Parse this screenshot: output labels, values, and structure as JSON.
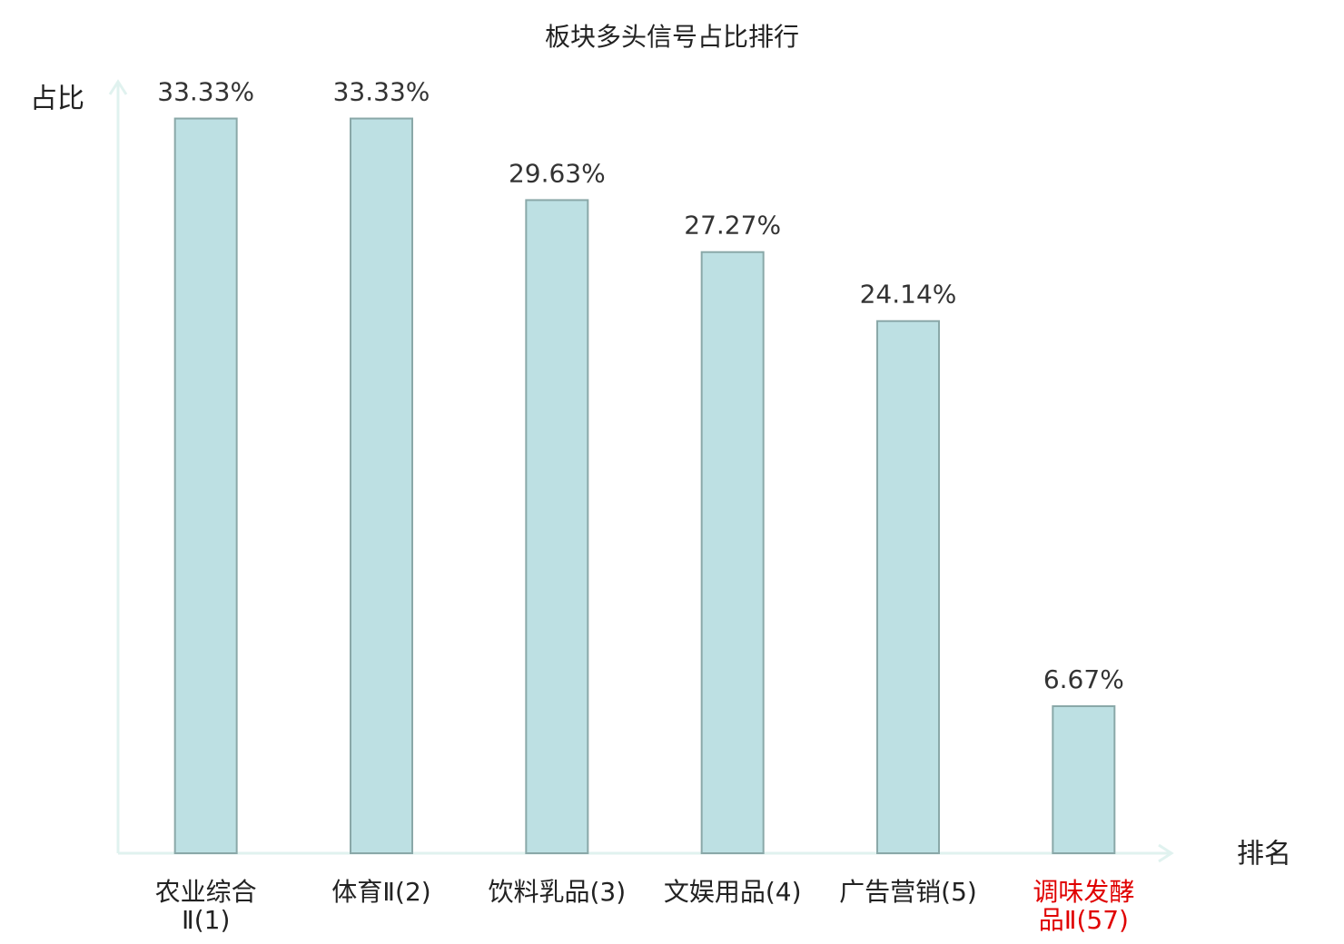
{
  "chart_data": {
    "type": "bar",
    "title": "板块多头信号占比排行",
    "y_label": "占比",
    "x_label": "排名",
    "categories": [
      [
        "农业综合",
        "Ⅱ(1)"
      ],
      [
        "体育Ⅱ(2)"
      ],
      [
        "饮料乳品(3)"
      ],
      [
        "文娱用品(4)"
      ],
      [
        "广告营销(5)"
      ],
      [
        "调味发酵",
        "品Ⅱ(57)"
      ]
    ],
    "category_colors": [
      "#222222",
      "#222222",
      "#222222",
      "#222222",
      "#222222",
      "#e00000"
    ],
    "values": [
      33.33,
      33.33,
      29.63,
      27.27,
      24.14,
      6.67
    ],
    "value_labels": [
      "33.33%",
      "33.33%",
      "29.63%",
      "27.27%",
      "24.14%",
      "6.67%"
    ],
    "color": "#bde0e3",
    "edge_color": "#8aa8a8",
    "axis_color": "#e0f2ef",
    "ylim": [
      0,
      35
    ]
  }
}
